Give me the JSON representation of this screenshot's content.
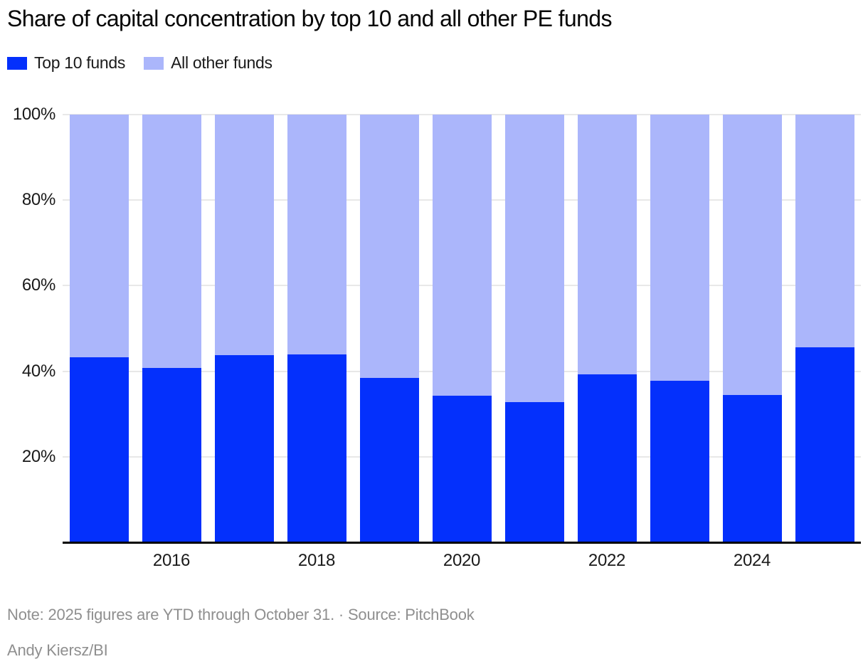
{
  "title": "Share of capital concentration by top 10 and all other PE funds",
  "legend": {
    "items": [
      {
        "label": "Top 10 funds",
        "color": "#0430fc"
      },
      {
        "label": "All other funds",
        "color": "#abb6fb"
      }
    ]
  },
  "chart_data": {
    "type": "bar",
    "stacked": true,
    "title": "Share of capital concentration by top 10 and all other PE funds",
    "categories": [
      "2015",
      "2016",
      "2017",
      "2018",
      "2019",
      "2020",
      "2021",
      "2022",
      "2023",
      "2024",
      "2025"
    ],
    "series": [
      {
        "name": "Top 10 funds",
        "color": "#0430fc",
        "values": [
          43.2,
          40.7,
          43.7,
          44.0,
          38.4,
          34.3,
          32.8,
          39.3,
          37.8,
          34.4,
          45.6
        ]
      },
      {
        "name": "All other funds",
        "color": "#abb6fb",
        "values": [
          56.8,
          59.3,
          56.3,
          56.0,
          61.6,
          65.7,
          67.2,
          60.7,
          62.2,
          65.6,
          54.4
        ]
      }
    ],
    "ylabel": "",
    "xlabel": "",
    "ylim": [
      0,
      100
    ],
    "y_ticks": [
      {
        "value": 100,
        "label": "100%"
      },
      {
        "value": 80,
        "label": "80%"
      },
      {
        "value": 60,
        "label": "60%"
      },
      {
        "value": 40,
        "label": "40%"
      },
      {
        "value": 20,
        "label": "20%"
      }
    ],
    "x_tick_labels": [
      {
        "band_index": 1,
        "label": "2016"
      },
      {
        "band_index": 3,
        "label": "2018"
      },
      {
        "band_index": 5,
        "label": "2020"
      },
      {
        "band_index": 7,
        "label": "2022"
      },
      {
        "band_index": 9,
        "label": "2024"
      }
    ],
    "grid": "horizontal",
    "gridline_color": "#e8e8e8",
    "axis_line_color": "#000000",
    "legend_position": "top-left"
  },
  "note": {
    "text": "Note: 2025 figures are YTD through October 31. · Source: PitchBook"
  },
  "byline": "Andy Kiersz/BI"
}
